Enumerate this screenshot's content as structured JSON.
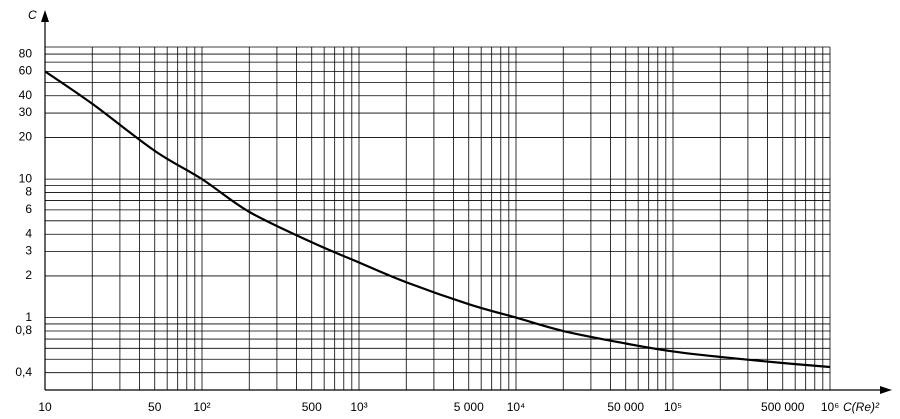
{
  "chart_data": {
    "type": "line",
    "xlabel": "C(Re)²",
    "ylabel": "C",
    "log_x": true,
    "log_y": true,
    "grid": true,
    "xlim": [
      10,
      1000000
    ],
    "ylim": [
      0.3,
      90
    ],
    "xticks": [
      10,
      50,
      {
        "value": 100,
        "label": "10²"
      },
      500,
      {
        "value": 1000,
        "label": "10³"
      },
      {
        "value": 5000,
        "label": "5 000"
      },
      {
        "value": 10000,
        "label": "10⁴"
      },
      {
        "value": 50000,
        "label": "50 000"
      },
      {
        "value": 100000,
        "label": "10⁵"
      },
      {
        "value": 500000,
        "label": "500 000"
      },
      {
        "value": 1000000,
        "label": "10⁶"
      }
    ],
    "xgrid": [
      10,
      20,
      30,
      40,
      50,
      60,
      70,
      80,
      90,
      100,
      200,
      300,
      400,
      500,
      600,
      700,
      800,
      900,
      1000,
      2000,
      3000,
      4000,
      5000,
      6000,
      7000,
      8000,
      9000,
      10000,
      20000,
      30000,
      40000,
      50000,
      60000,
      70000,
      80000,
      90000,
      100000,
      200000,
      300000,
      400000,
      500000,
      600000,
      700000,
      800000,
      900000,
      1000000
    ],
    "yticks": [
      {
        "value": 0.4,
        "label": "0,4"
      },
      {
        "value": 0.8,
        "label": "0,8"
      },
      1,
      2,
      3,
      4,
      6,
      8,
      10,
      20,
      30,
      40,
      60,
      80
    ],
    "ygrid": [
      0.4,
      0.5,
      0.6,
      0.7,
      0.8,
      0.9,
      1,
      2,
      3,
      4,
      5,
      6,
      7,
      8,
      9,
      10,
      20,
      30,
      40,
      50,
      60,
      70,
      80,
      90
    ],
    "series": [
      {
        "color": "#000000",
        "x": [
          10,
          20,
          50,
          100,
          200,
          500,
          1000,
          2000,
          5000,
          10000,
          20000,
          50000,
          100000,
          200000,
          500000,
          1000000
        ],
        "values": [
          60,
          35,
          16,
          10,
          5.8,
          3.5,
          2.5,
          1.8,
          1.25,
          1.0,
          0.8,
          0.65,
          0.57,
          0.52,
          0.47,
          0.44
        ]
      }
    ]
  }
}
